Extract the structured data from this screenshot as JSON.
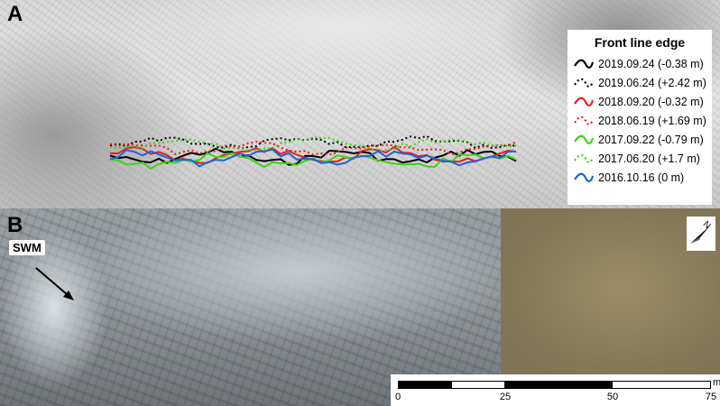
{
  "panels": {
    "a": {
      "label": "A"
    },
    "b": {
      "label": "B"
    }
  },
  "legend": {
    "title": "Front line edge",
    "items": [
      {
        "label": "2019.09.24 (-0.38 m)",
        "color": "#000000",
        "dashed": false
      },
      {
        "label": "2019.06.24 (+2.42 m)",
        "color": "#000000",
        "dashed": true
      },
      {
        "label": "2018.09.20 (-0.32 m)",
        "color": "#e3211c",
        "dashed": false
      },
      {
        "label": "2018.06.19 (+1.69 m)",
        "color": "#e3211c",
        "dashed": true
      },
      {
        "label": "2017.09.22 (-0.79 m)",
        "color": "#3fd11a",
        "dashed": false
      },
      {
        "label": "2017.06.20 (+1.7 m)",
        "color": "#3fd11a",
        "dashed": true
      },
      {
        "label": "2016.10.16 (0 m)",
        "color": "#1e64d8",
        "dashed": false
      }
    ]
  },
  "annotation": {
    "label": "SWM",
    "arrow_icon": "arrow-icon"
  },
  "north_arrow": {
    "icon": "north-arrow-icon",
    "label": "N"
  },
  "scale_bar": {
    "ticks": [
      "0",
      "25",
      "50",
      "75"
    ],
    "unit": "m"
  },
  "colors": {
    "black": "#000000",
    "red": "#e3211c",
    "green": "#3fd11a",
    "blue": "#1e64d8",
    "legend_bg": "#ffffff"
  }
}
